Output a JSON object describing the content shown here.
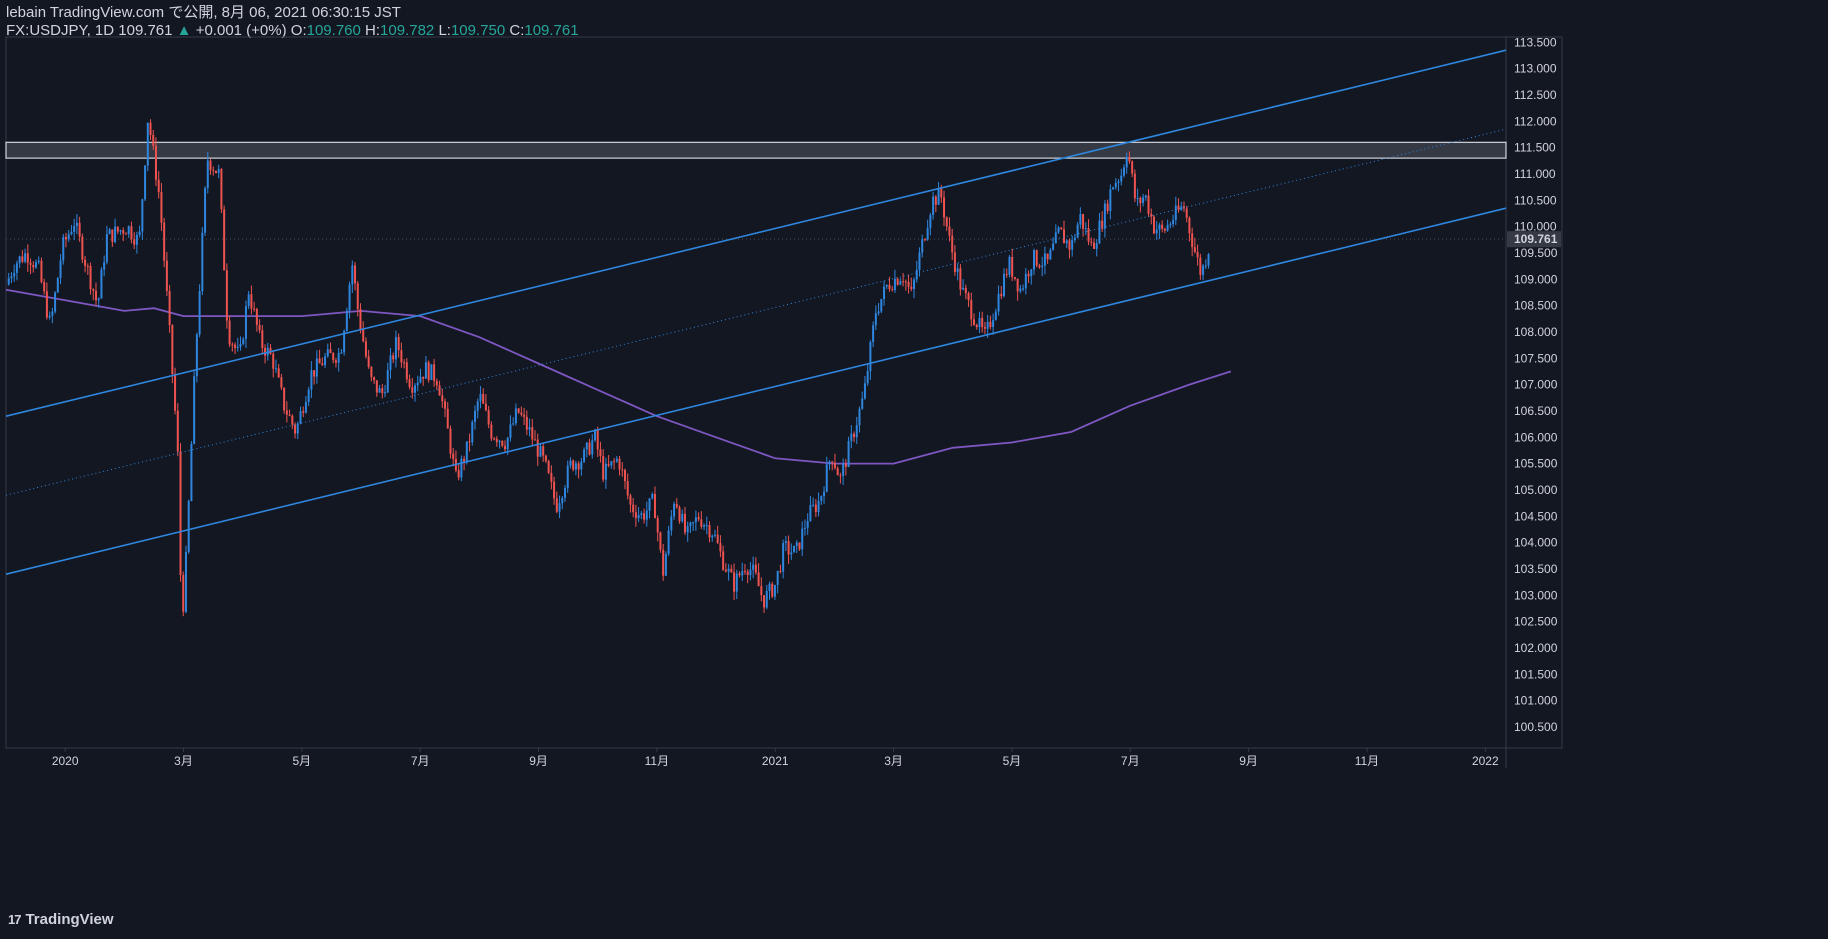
{
  "header": {
    "published": "lebain TradingView.com で公開, 8月 06, 2021 06:30:15 JST",
    "symbol": "FX:USDJPY, 1D",
    "last": "109.761",
    "change_arrow": "▲",
    "change": "+0.001 (+0%)",
    "o_label": "O:",
    "o_value": "109.760",
    "h_label": "H:",
    "h_value": "109.782",
    "l_label": "L:",
    "l_value": "109.750",
    "c_label": "C:",
    "c_value": "109.761"
  },
  "logo": {
    "mark": "17",
    "text": "TradingView"
  },
  "colors": {
    "background": "#131722",
    "up": "#2e86de",
    "down": "#ef5350",
    "channel": "#2e86de",
    "ma": "#7e57c2",
    "zone_fill": "#3a3d47",
    "zone_border": "#d1d4dc",
    "price_tag_bg": "#363a45"
  },
  "chart_data": {
    "type": "candlestick",
    "symbol": "FX:USDJPY",
    "timeframe": "1D",
    "ylim": [
      100.1,
      113.6
    ],
    "x_range_months": [
      0,
      25.35
    ],
    "price_axis_labels": [
      "113.500",
      "113.000",
      "112.500",
      "112.000",
      "111.500",
      "111.000",
      "110.500",
      "110.000",
      "109.500",
      "109.000",
      "108.500",
      "108.000",
      "107.500",
      "107.000",
      "106.500",
      "106.000",
      "105.500",
      "105.000",
      "104.500",
      "104.000",
      "103.500",
      "103.000",
      "102.500",
      "102.000",
      "101.500",
      "101.000",
      "100.500"
    ],
    "last_price_tag": "109.761",
    "last_price": 109.761,
    "time_axis_labels": [
      {
        "label": "2020",
        "m": 1.0
      },
      {
        "label": "3月",
        "m": 3.0
      },
      {
        "label": "5月",
        "m": 5.0
      },
      {
        "label": "7月",
        "m": 7.0
      },
      {
        "label": "9月",
        "m": 9.0
      },
      {
        "label": "11月",
        "m": 11.0
      },
      {
        "label": "2021",
        "m": 13.0
      },
      {
        "label": "3月",
        "m": 15.0
      },
      {
        "label": "5月",
        "m": 17.0
      },
      {
        "label": "7月",
        "m": 19.0
      },
      {
        "label": "9月",
        "m": 21.0
      },
      {
        "label": "11月",
        "m": 23.0
      },
      {
        "label": "2022",
        "m": 25.0
      }
    ],
    "close_path": [
      [
        0.0,
        108.9
      ],
      [
        0.15,
        109.3
      ],
      [
        0.35,
        109.5
      ],
      [
        0.55,
        109.2
      ],
      [
        0.75,
        108.1
      ],
      [
        0.95,
        109.6
      ],
      [
        1.15,
        110.1
      ],
      [
        1.3,
        109.5
      ],
      [
        1.55,
        108.5
      ],
      [
        1.7,
        109.8
      ],
      [
        2.05,
        110.0
      ],
      [
        2.25,
        109.7
      ],
      [
        2.4,
        112.1
      ],
      [
        2.6,
        110.5
      ],
      [
        2.75,
        108.2
      ],
      [
        2.9,
        105.8
      ],
      [
        2.97,
        102.4
      ],
      [
        3.05,
        103.8
      ],
      [
        3.2,
        107.5
      ],
      [
        3.4,
        111.3
      ],
      [
        3.6,
        111.0
      ],
      [
        3.75,
        108.0
      ],
      [
        3.95,
        107.5
      ],
      [
        4.1,
        108.8
      ],
      [
        4.3,
        107.8
      ],
      [
        4.5,
        107.5
      ],
      [
        4.7,
        106.6
      ],
      [
        4.9,
        106.1
      ],
      [
        5.15,
        107.2
      ],
      [
        5.4,
        107.5
      ],
      [
        5.65,
        107.6
      ],
      [
        5.85,
        109.3
      ],
      [
        5.95,
        108.4
      ],
      [
        6.15,
        107.1
      ],
      [
        6.35,
        106.8
      ],
      [
        6.6,
        107.8
      ],
      [
        6.85,
        107.0
      ],
      [
        7.1,
        107.3
      ],
      [
        7.3,
        107.1
      ],
      [
        7.5,
        105.9
      ],
      [
        7.6,
        105.2
      ],
      [
        7.8,
        105.8
      ],
      [
        8.0,
        106.8
      ],
      [
        8.2,
        106.1
      ],
      [
        8.45,
        105.9
      ],
      [
        8.65,
        106.5
      ],
      [
        8.85,
        106.1
      ],
      [
        9.1,
        105.5
      ],
      [
        9.3,
        104.7
      ],
      [
        9.55,
        105.5
      ],
      [
        9.75,
        105.6
      ],
      [
        9.95,
        106.0
      ],
      [
        10.1,
        105.3
      ],
      [
        10.35,
        105.6
      ],
      [
        10.55,
        104.7
      ],
      [
        10.75,
        104.5
      ],
      [
        10.95,
        104.8
      ],
      [
        11.1,
        103.4
      ],
      [
        11.3,
        104.9
      ],
      [
        11.5,
        104.1
      ],
      [
        11.7,
        104.5
      ],
      [
        11.95,
        104.2
      ],
      [
        12.1,
        103.7
      ],
      [
        12.3,
        103.2
      ],
      [
        12.5,
        103.6
      ],
      [
        12.65,
        103.4
      ],
      [
        12.8,
        102.9
      ],
      [
        13.0,
        103.2
      ],
      [
        13.15,
        103.9
      ],
      [
        13.35,
        103.8
      ],
      [
        13.55,
        104.5
      ],
      [
        13.75,
        104.8
      ],
      [
        13.95,
        105.7
      ],
      [
        14.1,
        105.2
      ],
      [
        14.3,
        106.0
      ],
      [
        14.5,
        106.8
      ],
      [
        14.7,
        108.4
      ],
      [
        14.9,
        108.9
      ],
      [
        15.15,
        109.1
      ],
      [
        15.3,
        108.7
      ],
      [
        15.45,
        109.5
      ],
      [
        15.65,
        110.5
      ],
      [
        15.8,
        110.6
      ],
      [
        15.95,
        109.7
      ],
      [
        16.15,
        108.8
      ],
      [
        16.4,
        108.2
      ],
      [
        16.55,
        107.9
      ],
      [
        16.75,
        108.6
      ],
      [
        16.95,
        109.3
      ],
      [
        17.15,
        108.8
      ],
      [
        17.35,
        109.4
      ],
      [
        17.6,
        109.3
      ],
      [
        17.8,
        109.9
      ],
      [
        18.0,
        109.6
      ],
      [
        18.15,
        110.2
      ],
      [
        18.35,
        109.6
      ],
      [
        18.55,
        110.2
      ],
      [
        18.7,
        110.8
      ],
      [
        18.85,
        111.0
      ],
      [
        18.95,
        111.5
      ],
      [
        19.1,
        110.4
      ],
      [
        19.25,
        110.6
      ],
      [
        19.4,
        110.0
      ],
      [
        19.55,
        109.9
      ],
      [
        19.75,
        110.2
      ],
      [
        19.9,
        110.4
      ],
      [
        20.1,
        109.5
      ],
      [
        20.2,
        109.1
      ],
      [
        20.35,
        109.7
      ]
    ],
    "moving_average": [
      [
        0.0,
        108.8
      ],
      [
        1.0,
        108.6
      ],
      [
        2.0,
        108.4
      ],
      [
        2.5,
        108.45
      ],
      [
        3.0,
        108.3
      ],
      [
        4.0,
        108.3
      ],
      [
        5.0,
        108.3
      ],
      [
        6.0,
        108.4
      ],
      [
        7.0,
        108.3
      ],
      [
        8.0,
        107.9
      ],
      [
        9.0,
        107.4
      ],
      [
        10.0,
        106.9
      ],
      [
        11.0,
        106.4
      ],
      [
        12.0,
        106.0
      ],
      [
        13.0,
        105.6
      ],
      [
        14.0,
        105.5
      ],
      [
        15.0,
        105.5
      ],
      [
        16.0,
        105.8
      ],
      [
        17.0,
        105.9
      ],
      [
        18.0,
        106.1
      ],
      [
        19.0,
        106.6
      ],
      [
        20.0,
        107.0
      ],
      [
        20.7,
        107.25
      ]
    ],
    "channel_lines": [
      {
        "name": "upper",
        "m1": 0.0,
        "p1": 106.4,
        "m2": 25.35,
        "p2": 113.35,
        "style": "solid"
      },
      {
        "name": "median",
        "m1": 0.0,
        "p1": 104.9,
        "m2": 25.35,
        "p2": 111.85,
        "style": "dotted"
      },
      {
        "name": "lower",
        "m1": 0.0,
        "p1": 103.4,
        "m2": 25.35,
        "p2": 110.35,
        "style": "solid"
      }
    ],
    "resistance_zone": {
      "low": 111.3,
      "high": 111.6
    }
  }
}
